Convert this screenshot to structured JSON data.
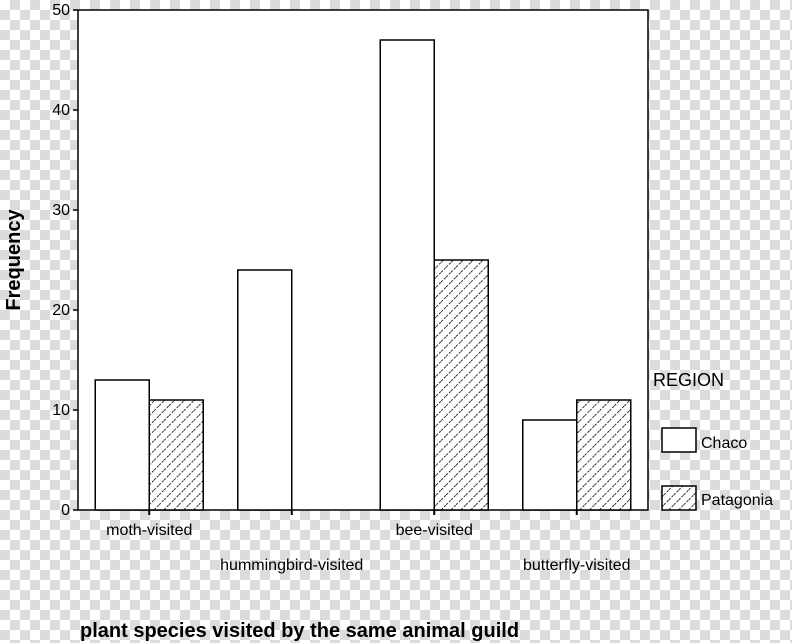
{
  "chart_data": {
    "type": "bar",
    "title": "",
    "xlabel": "plant species visited by the same animal guild",
    "ylabel": "Frequency",
    "ylim": [
      0,
      50
    ],
    "yticks": [
      0,
      10,
      20,
      30,
      40,
      50
    ],
    "categories": [
      "moth-visited",
      "hummingbird-visited",
      "bee-visited",
      "butterfly-visited"
    ],
    "legend": {
      "title": "REGION",
      "placement": "right"
    },
    "series": [
      {
        "name": "Chaco",
        "values": [
          13,
          24,
          47,
          9
        ],
        "fill": "#ffffff"
      },
      {
        "name": "Patagonia",
        "values": [
          11,
          0,
          25,
          11
        ],
        "fill": "hatched"
      }
    ],
    "grid": false
  }
}
